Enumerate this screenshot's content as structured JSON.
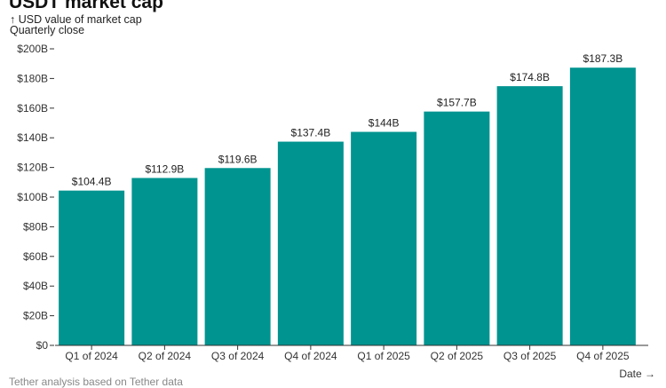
{
  "title": "USDT market cap",
  "subtitle": "↑ USD value of market cap",
  "subtitle2": "Quarterly close",
  "footer": "Tether analysis based on Tether data",
  "chart_data": {
    "type": "bar",
    "categories": [
      "Q1 of 2024",
      "Q2 of 2024",
      "Q3 of 2024",
      "Q4 of 2024",
      "Q1 of 2025",
      "Q2 of 2025",
      "Q3 of 2025",
      "Q4 of 2025"
    ],
    "values": [
      104.4,
      112.9,
      119.6,
      137.4,
      144,
      157.7,
      174.8,
      187.3
    ],
    "data_labels": [
      "$104.4B",
      "$112.9B",
      "$119.6B",
      "$137.4B",
      "$144B",
      "$157.7B",
      "$174.8B",
      "$187.3B"
    ],
    "ylabel": "↑ USD value of market cap",
    "xlabel": "Date →",
    "ylim": [
      0,
      200
    ],
    "yticks": [
      0,
      20,
      40,
      60,
      80,
      100,
      120,
      140,
      160,
      180,
      200
    ],
    "ytick_labels": [
      "$0",
      "$20B",
      "$40B",
      "$60B",
      "$80B",
      "$100B",
      "$120B",
      "$140B",
      "$160B",
      "$180B",
      "$200B"
    ],
    "color": "#009490",
    "grid": false
  }
}
